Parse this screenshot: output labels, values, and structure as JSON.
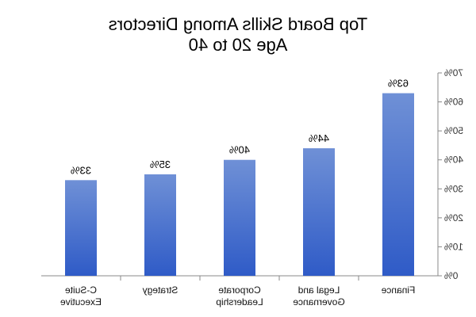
{
  "chart_data": {
    "type": "bar",
    "title_lines": [
      "Top Board Skills Among Directors",
      "Age 20 to 40"
    ],
    "categories": [
      [
        "Finance"
      ],
      [
        "Legal and",
        "Governance"
      ],
      [
        "Corporate",
        "Leadership"
      ],
      [
        "Strategy"
      ],
      [
        "C-Suite",
        "Executive"
      ]
    ],
    "values": [
      63,
      44,
      40,
      35,
      33
    ],
    "value_labels": [
      "63%",
      "44%",
      "40%",
      "35%",
      "33%"
    ],
    "ylim": [
      0,
      70
    ],
    "y_ticks": [
      0,
      10,
      20,
      30,
      40,
      50,
      60,
      70
    ],
    "y_tick_labels": [
      "0%",
      "10%",
      "20%",
      "30%",
      "40%",
      "50%",
      "60%",
      "70%"
    ],
    "xlabel": "",
    "ylabel": "",
    "grid": false,
    "legend": "none",
    "mirrored": true,
    "colors": {
      "bar_top": "#6f90d6",
      "bar_bottom": "#2f5bc7",
      "axis": "#888888"
    }
  }
}
